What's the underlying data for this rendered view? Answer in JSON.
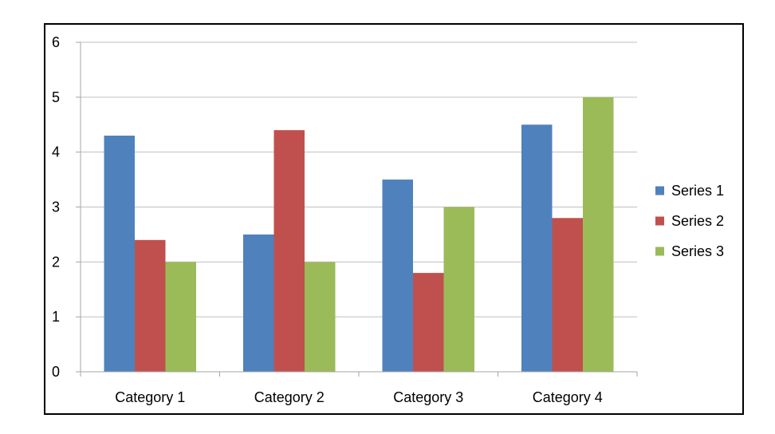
{
  "chart_data": {
    "type": "bar",
    "title": "",
    "xlabel": "",
    "ylabel": "",
    "categories": [
      "Category 1",
      "Category 2",
      "Category 3",
      "Category 4"
    ],
    "series": [
      {
        "name": "Series 1",
        "color": "#4F81BD",
        "values": [
          4.3,
          2.5,
          3.5,
          4.5
        ]
      },
      {
        "name": "Series 2",
        "color": "#C0504D",
        "values": [
          2.4,
          4.4,
          1.8,
          2.8
        ]
      },
      {
        "name": "Series 3",
        "color": "#9BBB59",
        "values": [
          2.0,
          2.0,
          3.0,
          5.0
        ]
      }
    ],
    "ylim": [
      0,
      6
    ],
    "yticks": [
      "0",
      "1",
      "2",
      "3",
      "4",
      "5",
      "6"
    ],
    "grid": true,
    "legend": "right",
    "gridline_color": "#BFBFBF",
    "axis_color": "#A6A6A6"
  }
}
